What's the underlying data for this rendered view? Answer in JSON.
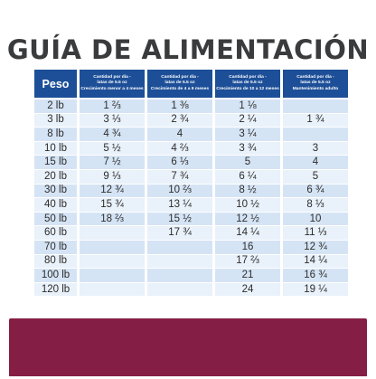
{
  "title": "GUÍA DE ALIMENTACIÓN",
  "headers": [
    {
      "lines": [
        "Peso"
      ]
    },
    {
      "lines": [
        "Cantidad por día -",
        "latas de 5.5 oz",
        "Crecimiento menor a 4 meses"
      ]
    },
    {
      "lines": [
        "Cantidad por día -",
        "latas de 5.5 oz",
        "Crecimiento de 4 a 9 meses"
      ]
    },
    {
      "lines": [
        "Cantidad por día -",
        "latas de 5.5 oz",
        "Crecimiento de 10 a 12 meses"
      ]
    },
    {
      "lines": [
        "Cantidad por día -",
        "latas de 5.5 oz",
        "Mantenimiento adulto"
      ]
    }
  ],
  "rows": [
    [
      "2 lb",
      "1 ⅔",
      "1 ⅜",
      "1 ⅛",
      ""
    ],
    [
      "3 lb",
      "3 ⅓",
      "2 ¾",
      "2 ¼",
      "1 ¾"
    ],
    [
      "8 lb",
      "4 ¾",
      "4",
      "3 ¼",
      ""
    ],
    [
      "10 lb",
      "5 ½",
      "4 ⅔",
      "3 ¾",
      "3"
    ],
    [
      "15 lb",
      "7 ½",
      "6 ⅓",
      "5",
      "4"
    ],
    [
      "20 lb",
      "9 ⅓",
      "7 ¾",
      "6 ¼",
      "5"
    ],
    [
      "30 lb",
      "12 ¾",
      "10 ⅔",
      "8 ½",
      "6 ¾"
    ],
    [
      "40 lb",
      "15 ¾",
      "13 ¼",
      "10 ½",
      "8 ⅓"
    ],
    [
      "50 lb",
      "18 ⅔",
      "15 ½",
      "12 ½",
      "10"
    ],
    [
      "60 lb",
      "",
      "17 ¾",
      "14 ¼",
      "11 ⅓"
    ],
    [
      "70 lb",
      "",
      "",
      "16",
      "12 ¾"
    ],
    [
      "80 lb",
      "",
      "",
      "17 ⅔",
      "14 ¼"
    ],
    [
      "100 lb",
      "",
      "",
      "21",
      "16 ¾"
    ],
    [
      "120 lb",
      "",
      "",
      "24",
      "19 ¼"
    ]
  ],
  "colors": {
    "header": "#1d4f98",
    "row_dark": "#d5e4f5",
    "row_light": "#e9f1fa",
    "title": "#3a3b3d",
    "bottom_bar": "#851e45"
  }
}
